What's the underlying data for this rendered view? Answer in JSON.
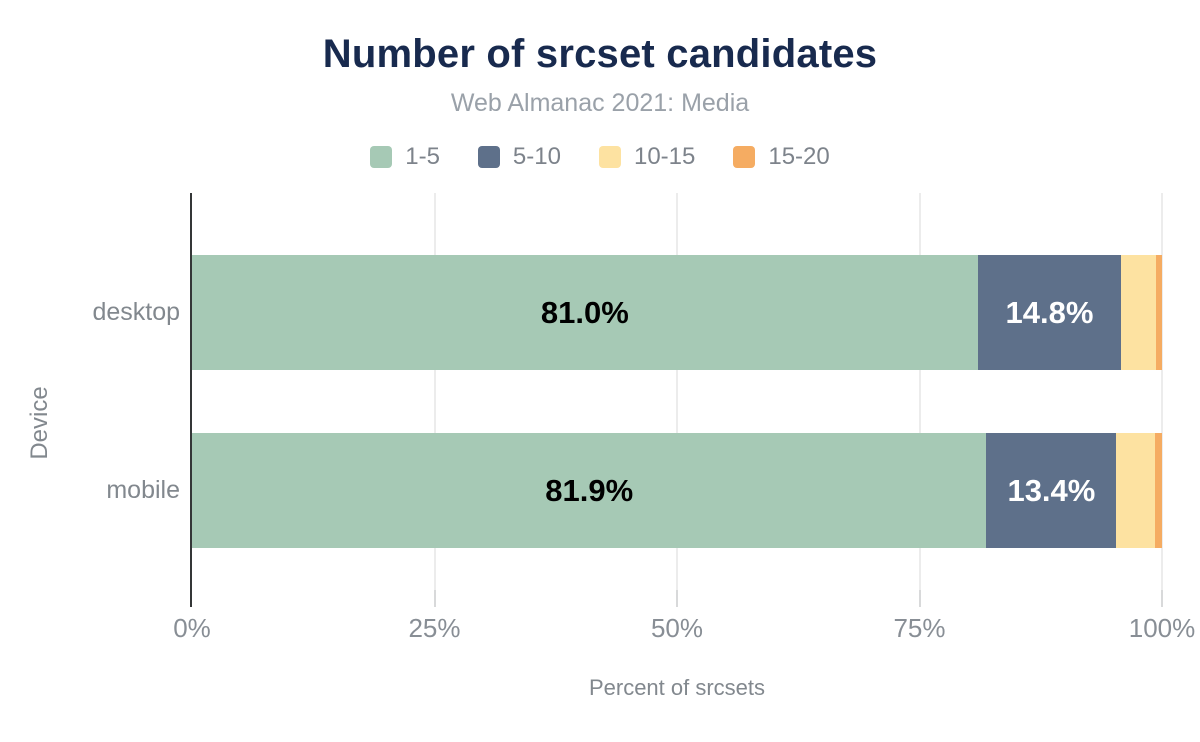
{
  "title": "Number of srcset candidates",
  "subtitle": "Web Almanac 2021: Media",
  "colors": {
    "title": "#182a4e",
    "subtitle": "#9aa1a9",
    "axis_text": "#82888e",
    "tick_text": "#888e95",
    "axis_line": "#343637",
    "gridline": "#ececec",
    "background": "#ffffff"
  },
  "chart_data": {
    "type": "bar",
    "orientation": "horizontal",
    "stacked": true,
    "title": "Number of srcset candidates",
    "subtitle": "Web Almanac 2021: Media",
    "categories": [
      "desktop",
      "mobile"
    ],
    "series": [
      {
        "name": "1-5",
        "color": "#a6c9b5",
        "values": [
          81.0,
          81.9
        ],
        "value_labels": [
          "81.0%",
          "81.9%"
        ],
        "label_color": "#000000"
      },
      {
        "name": "5-10",
        "color": "#5e708a",
        "values": [
          14.8,
          13.4
        ],
        "value_labels": [
          "14.8%",
          "13.4%"
        ],
        "label_color": "#ffffff"
      },
      {
        "name": "10-15",
        "color": "#fde2a1",
        "values": [
          3.6,
          4.0
        ],
        "value_labels": [
          "",
          ""
        ],
        "label_color": "#000000"
      },
      {
        "name": "15-20",
        "color": "#f5ac62",
        "values": [
          0.6,
          0.7
        ],
        "value_labels": [
          "",
          ""
        ],
        "label_color": "#000000"
      }
    ],
    "xlabel": "Percent of srcsets",
    "ylabel": "Device",
    "xlim": [
      0,
      100
    ],
    "x_ticks": [
      {
        "label": "0%",
        "value": 0
      },
      {
        "label": "25%",
        "value": 25
      },
      {
        "label": "50%",
        "value": 50
      },
      {
        "label": "75%",
        "value": 75
      },
      {
        "label": "100%",
        "value": 100
      }
    ],
    "grid": "vertical",
    "legend_position": "top"
  }
}
